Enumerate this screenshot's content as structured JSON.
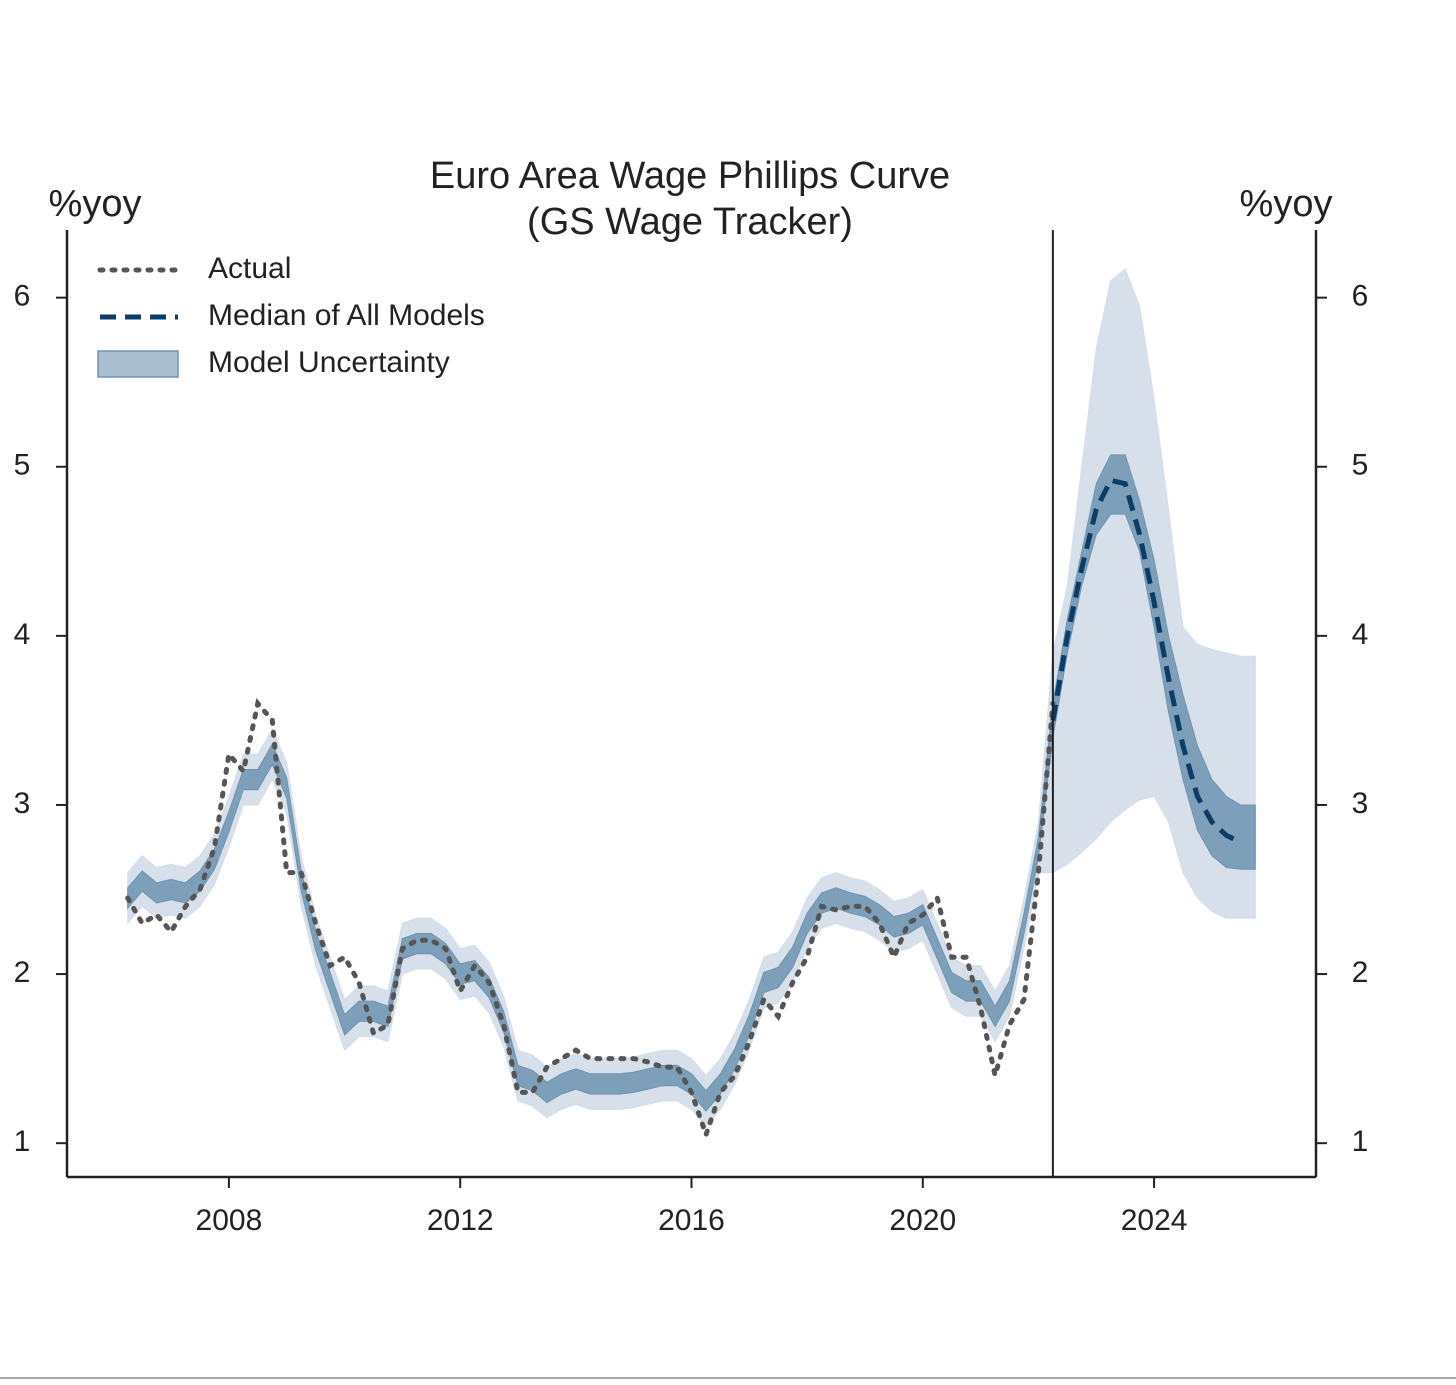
{
  "chart_data": {
    "type": "line",
    "title": "Euro Area Wage Phillips Curve",
    "subtitle": "(GS Wage Tracker)",
    "y_label": "%yoy",
    "y2_label": "%yoy",
    "xlim": [
      2005.2,
      2026.8
    ],
    "xticks": [
      2008,
      2012,
      2016,
      2020,
      2024
    ],
    "ylim": [
      0.8,
      6.4
    ],
    "yticks": [
      1,
      2,
      3,
      4,
      5,
      6
    ],
    "y2lim": [
      0.8,
      6.4
    ],
    "y2ticks": [
      1,
      2,
      3,
      4,
      5,
      6
    ],
    "forecast_start": 2022.25,
    "legend_position": "upper left",
    "x": [
      2006.25,
      2006.5,
      2006.75,
      2007,
      2007.25,
      2007.5,
      2007.75,
      2008,
      2008.25,
      2008.5,
      2008.75,
      2009,
      2009.25,
      2009.5,
      2009.75,
      2010,
      2010.25,
      2010.5,
      2010.75,
      2011,
      2011.25,
      2011.5,
      2011.75,
      2012,
      2012.25,
      2012.5,
      2012.75,
      2013,
      2013.25,
      2013.5,
      2013.75,
      2014,
      2014.25,
      2014.5,
      2014.75,
      2015,
      2015.25,
      2015.5,
      2015.75,
      2016,
      2016.25,
      2016.5,
      2016.75,
      2017,
      2017.25,
      2017.5,
      2017.75,
      2018,
      2018.25,
      2018.5,
      2018.75,
      2019,
      2019.25,
      2019.5,
      2019.75,
      2020,
      2020.25,
      2020.5,
      2020.75,
      2021,
      2021.25,
      2021.5,
      2021.75,
      2022,
      2022.25,
      2022.5,
      2022.75,
      2023,
      2023.25,
      2023.5,
      2023.75,
      2024,
      2024.25,
      2024.5,
      2024.75,
      2025,
      2025.25,
      2025.5,
      2025.75
    ],
    "bands": [
      {
        "color": "#d3dde8",
        "lower": [
          2.3,
          2.4,
          2.33,
          2.35,
          2.33,
          2.4,
          2.53,
          2.75,
          3.0,
          3.0,
          3.15,
          2.95,
          2.4,
          2.05,
          1.8,
          1.55,
          1.63,
          1.63,
          1.6,
          2.0,
          2.03,
          2.03,
          1.97,
          1.85,
          1.87,
          1.77,
          1.57,
          1.25,
          1.22,
          1.15,
          1.2,
          1.23,
          1.2,
          1.2,
          1.2,
          1.21,
          1.23,
          1.25,
          1.25,
          1.2,
          1.1,
          1.2,
          1.35,
          1.55,
          1.8,
          1.83,
          1.95,
          2.15,
          2.27,
          2.3,
          2.27,
          2.25,
          2.2,
          2.13,
          2.15,
          2.2,
          2.0,
          1.8,
          1.75,
          1.75,
          1.6,
          1.75,
          2.15,
          2.6,
          2.6,
          2.65,
          2.72,
          2.8,
          2.9,
          2.97,
          3.03,
          3.05,
          2.9,
          2.6,
          2.45,
          2.37,
          2.33,
          2.33,
          2.33
        ],
        "upper": [
          2.6,
          2.7,
          2.63,
          2.65,
          2.63,
          2.7,
          2.83,
          3.05,
          3.3,
          3.3,
          3.45,
          3.25,
          2.7,
          2.35,
          2.1,
          1.85,
          1.93,
          1.93,
          1.9,
          2.3,
          2.33,
          2.33,
          2.27,
          2.15,
          2.17,
          2.07,
          1.87,
          1.55,
          1.52,
          1.45,
          1.5,
          1.53,
          1.5,
          1.5,
          1.5,
          1.51,
          1.53,
          1.55,
          1.55,
          1.5,
          1.4,
          1.5,
          1.65,
          1.85,
          2.1,
          2.13,
          2.25,
          2.45,
          2.57,
          2.6,
          2.57,
          2.55,
          2.5,
          2.43,
          2.45,
          2.5,
          2.3,
          2.1,
          2.05,
          2.05,
          1.9,
          2.05,
          2.45,
          2.9,
          3.9,
          4.3,
          5.0,
          5.7,
          6.1,
          6.17,
          5.95,
          5.4,
          4.75,
          4.05,
          3.95,
          3.92,
          3.9,
          3.88,
          3.88
        ]
      },
      {
        "name": "Model Uncertainty",
        "color": "#6f93b0",
        "lower": [
          2.39,
          2.49,
          2.42,
          2.44,
          2.42,
          2.49,
          2.62,
          2.84,
          3.09,
          3.09,
          3.24,
          3.04,
          2.49,
          2.14,
          1.89,
          1.64,
          1.72,
          1.72,
          1.69,
          2.09,
          2.12,
          2.12,
          2.06,
          1.94,
          1.96,
          1.86,
          1.66,
          1.34,
          1.31,
          1.24,
          1.29,
          1.32,
          1.29,
          1.29,
          1.29,
          1.3,
          1.32,
          1.34,
          1.34,
          1.29,
          1.19,
          1.29,
          1.44,
          1.64,
          1.89,
          1.92,
          2.04,
          2.24,
          2.36,
          2.39,
          2.36,
          2.34,
          2.29,
          2.22,
          2.24,
          2.29,
          2.09,
          1.89,
          1.84,
          1.84,
          1.69,
          1.84,
          2.24,
          2.69,
          3.4,
          3.9,
          4.3,
          4.6,
          4.72,
          4.72,
          4.5,
          4.05,
          3.55,
          3.15,
          2.85,
          2.7,
          2.63,
          2.62,
          2.62
        ],
        "upper": [
          2.51,
          2.61,
          2.54,
          2.56,
          2.54,
          2.61,
          2.74,
          2.96,
          3.21,
          3.21,
          3.36,
          3.16,
          2.61,
          2.26,
          2.01,
          1.76,
          1.84,
          1.84,
          1.81,
          2.21,
          2.24,
          2.24,
          2.18,
          2.06,
          2.08,
          1.98,
          1.78,
          1.46,
          1.43,
          1.36,
          1.41,
          1.44,
          1.41,
          1.41,
          1.41,
          1.42,
          1.44,
          1.46,
          1.46,
          1.41,
          1.31,
          1.41,
          1.56,
          1.76,
          2.01,
          2.04,
          2.16,
          2.36,
          2.48,
          2.51,
          2.48,
          2.46,
          2.41,
          2.34,
          2.36,
          2.41,
          2.21,
          2.01,
          1.96,
          1.96,
          1.81,
          1.96,
          2.36,
          2.81,
          3.6,
          4.1,
          4.5,
          4.9,
          5.07,
          5.07,
          4.8,
          4.45,
          4.0,
          3.65,
          3.35,
          3.15,
          3.05,
          3.0,
          3.0
        ]
      }
    ],
    "series": [
      {
        "name": "Actual",
        "color": "#555555",
        "style": "dotted",
        "values": [
          2.45,
          2.3,
          2.35,
          2.25,
          2.4,
          2.5,
          2.75,
          3.3,
          3.2,
          3.6,
          3.5,
          2.6,
          2.6,
          2.3,
          2.05,
          2.1,
          1.95,
          1.65,
          1.7,
          2.15,
          2.2,
          2.2,
          2.15,
          1.9,
          2.05,
          1.95,
          1.7,
          1.3,
          1.3,
          1.45,
          1.5,
          1.55,
          1.5,
          1.5,
          1.5,
          1.5,
          1.48,
          1.45,
          1.45,
          1.3,
          1.05,
          1.3,
          1.4,
          1.6,
          1.85,
          1.75,
          1.95,
          2.1,
          2.4,
          2.38,
          2.4,
          2.4,
          2.3,
          2.1,
          2.3,
          2.35,
          2.45,
          2.1,
          2.1,
          1.8,
          1.4,
          1.7,
          1.85,
          2.6,
          3.6,
          null,
          null,
          null,
          null,
          null,
          null,
          null,
          null,
          null,
          null,
          null,
          null,
          null,
          null
        ]
      },
      {
        "name": "Median of All Models",
        "color": "#0b3d66",
        "style": "dashed",
        "values": [
          null,
          null,
          null,
          null,
          null,
          null,
          null,
          null,
          null,
          null,
          null,
          null,
          null,
          null,
          null,
          null,
          null,
          null,
          null,
          null,
          null,
          null,
          null,
          null,
          null,
          null,
          null,
          null,
          null,
          null,
          null,
          null,
          null,
          null,
          null,
          null,
          null,
          null,
          null,
          null,
          null,
          null,
          null,
          null,
          null,
          null,
          null,
          null,
          null,
          null,
          null,
          null,
          null,
          null,
          null,
          null,
          null,
          null,
          null,
          null,
          null,
          null,
          null,
          null,
          3.5,
          4.0,
          4.4,
          4.75,
          4.92,
          4.9,
          4.6,
          4.2,
          3.75,
          3.35,
          3.05,
          2.9,
          2.82,
          2.78,
          null
        ]
      }
    ]
  }
}
